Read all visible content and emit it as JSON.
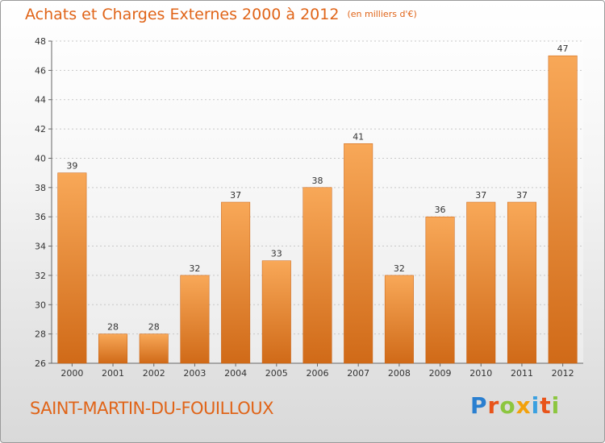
{
  "header": {
    "title": "Achats et Charges Externes 2000 à 2012",
    "unit": "(en milliers d'€)"
  },
  "chart_data": {
    "type": "bar",
    "title": "Achats et Charges Externes 2000 à 2012",
    "subtitle": "(en milliers d'€)",
    "xlabel": "",
    "ylabel": "",
    "categories": [
      "2000",
      "2001",
      "2002",
      "2003",
      "2004",
      "2005",
      "2006",
      "2007",
      "2008",
      "2009",
      "2010",
      "2011",
      "2012"
    ],
    "values": [
      39,
      28,
      28,
      32,
      37,
      33,
      38,
      41,
      32,
      36,
      37,
      37,
      47
    ],
    "ylim": [
      26,
      48
    ],
    "yticks": [
      26,
      28,
      30,
      32,
      34,
      36,
      38,
      40,
      42,
      44,
      46,
      48
    ],
    "grid": true,
    "bar_color": "#f0862a",
    "bar_color_light": "#f8a858",
    "bar_color_dark": "#d06a18"
  },
  "footer": {
    "town": "SAINT-MARTIN-DU-FOUILLOUX",
    "brand": "Proxiti",
    "brand_colors": [
      "#2a7fd0",
      "#e8541a",
      "#8cc63f",
      "#f2a10c",
      "#3aa0e0",
      "#e8541a",
      "#8cc63f"
    ]
  }
}
